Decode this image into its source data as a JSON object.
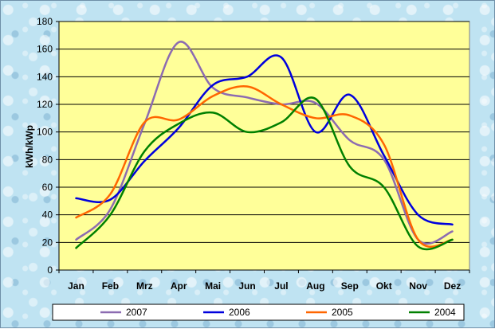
{
  "chart_data": {
    "type": "line",
    "title": "",
    "xlabel": "",
    "ylabel": "kWh/kWp",
    "ylim": [
      0,
      180
    ],
    "yticks": [
      0,
      20,
      40,
      60,
      80,
      100,
      120,
      140,
      160,
      180
    ],
    "categories": [
      "Jan",
      "Feb",
      "Mrz",
      "Apr",
      "Mai",
      "Jun",
      "Jul",
      "Aug",
      "Sep",
      "Okt",
      "Nov",
      "Dez"
    ],
    "grid": true,
    "legend_position": "bottom",
    "plot_background": "#ffff99",
    "series": [
      {
        "name": "2007",
        "color": "#8c6bb1",
        "values": [
          22,
          44,
          106,
          165,
          132,
          125,
          120,
          121,
          94,
          80,
          22,
          28
        ]
      },
      {
        "name": "2006",
        "color": "#0000dd",
        "values": [
          52,
          51,
          79,
          103,
          134,
          140,
          154,
          100,
          127,
          83,
          40,
          33
        ]
      },
      {
        "name": "2005",
        "color": "#ff6600",
        "values": [
          38,
          55,
          107,
          109,
          126,
          133,
          120,
          110,
          112,
          91,
          22,
          22
        ]
      },
      {
        "name": "2004",
        "color": "#008000",
        "values": [
          16,
          40,
          86,
          106,
          114,
          100,
          107,
          124,
          75,
          60,
          17,
          22
        ]
      }
    ]
  }
}
